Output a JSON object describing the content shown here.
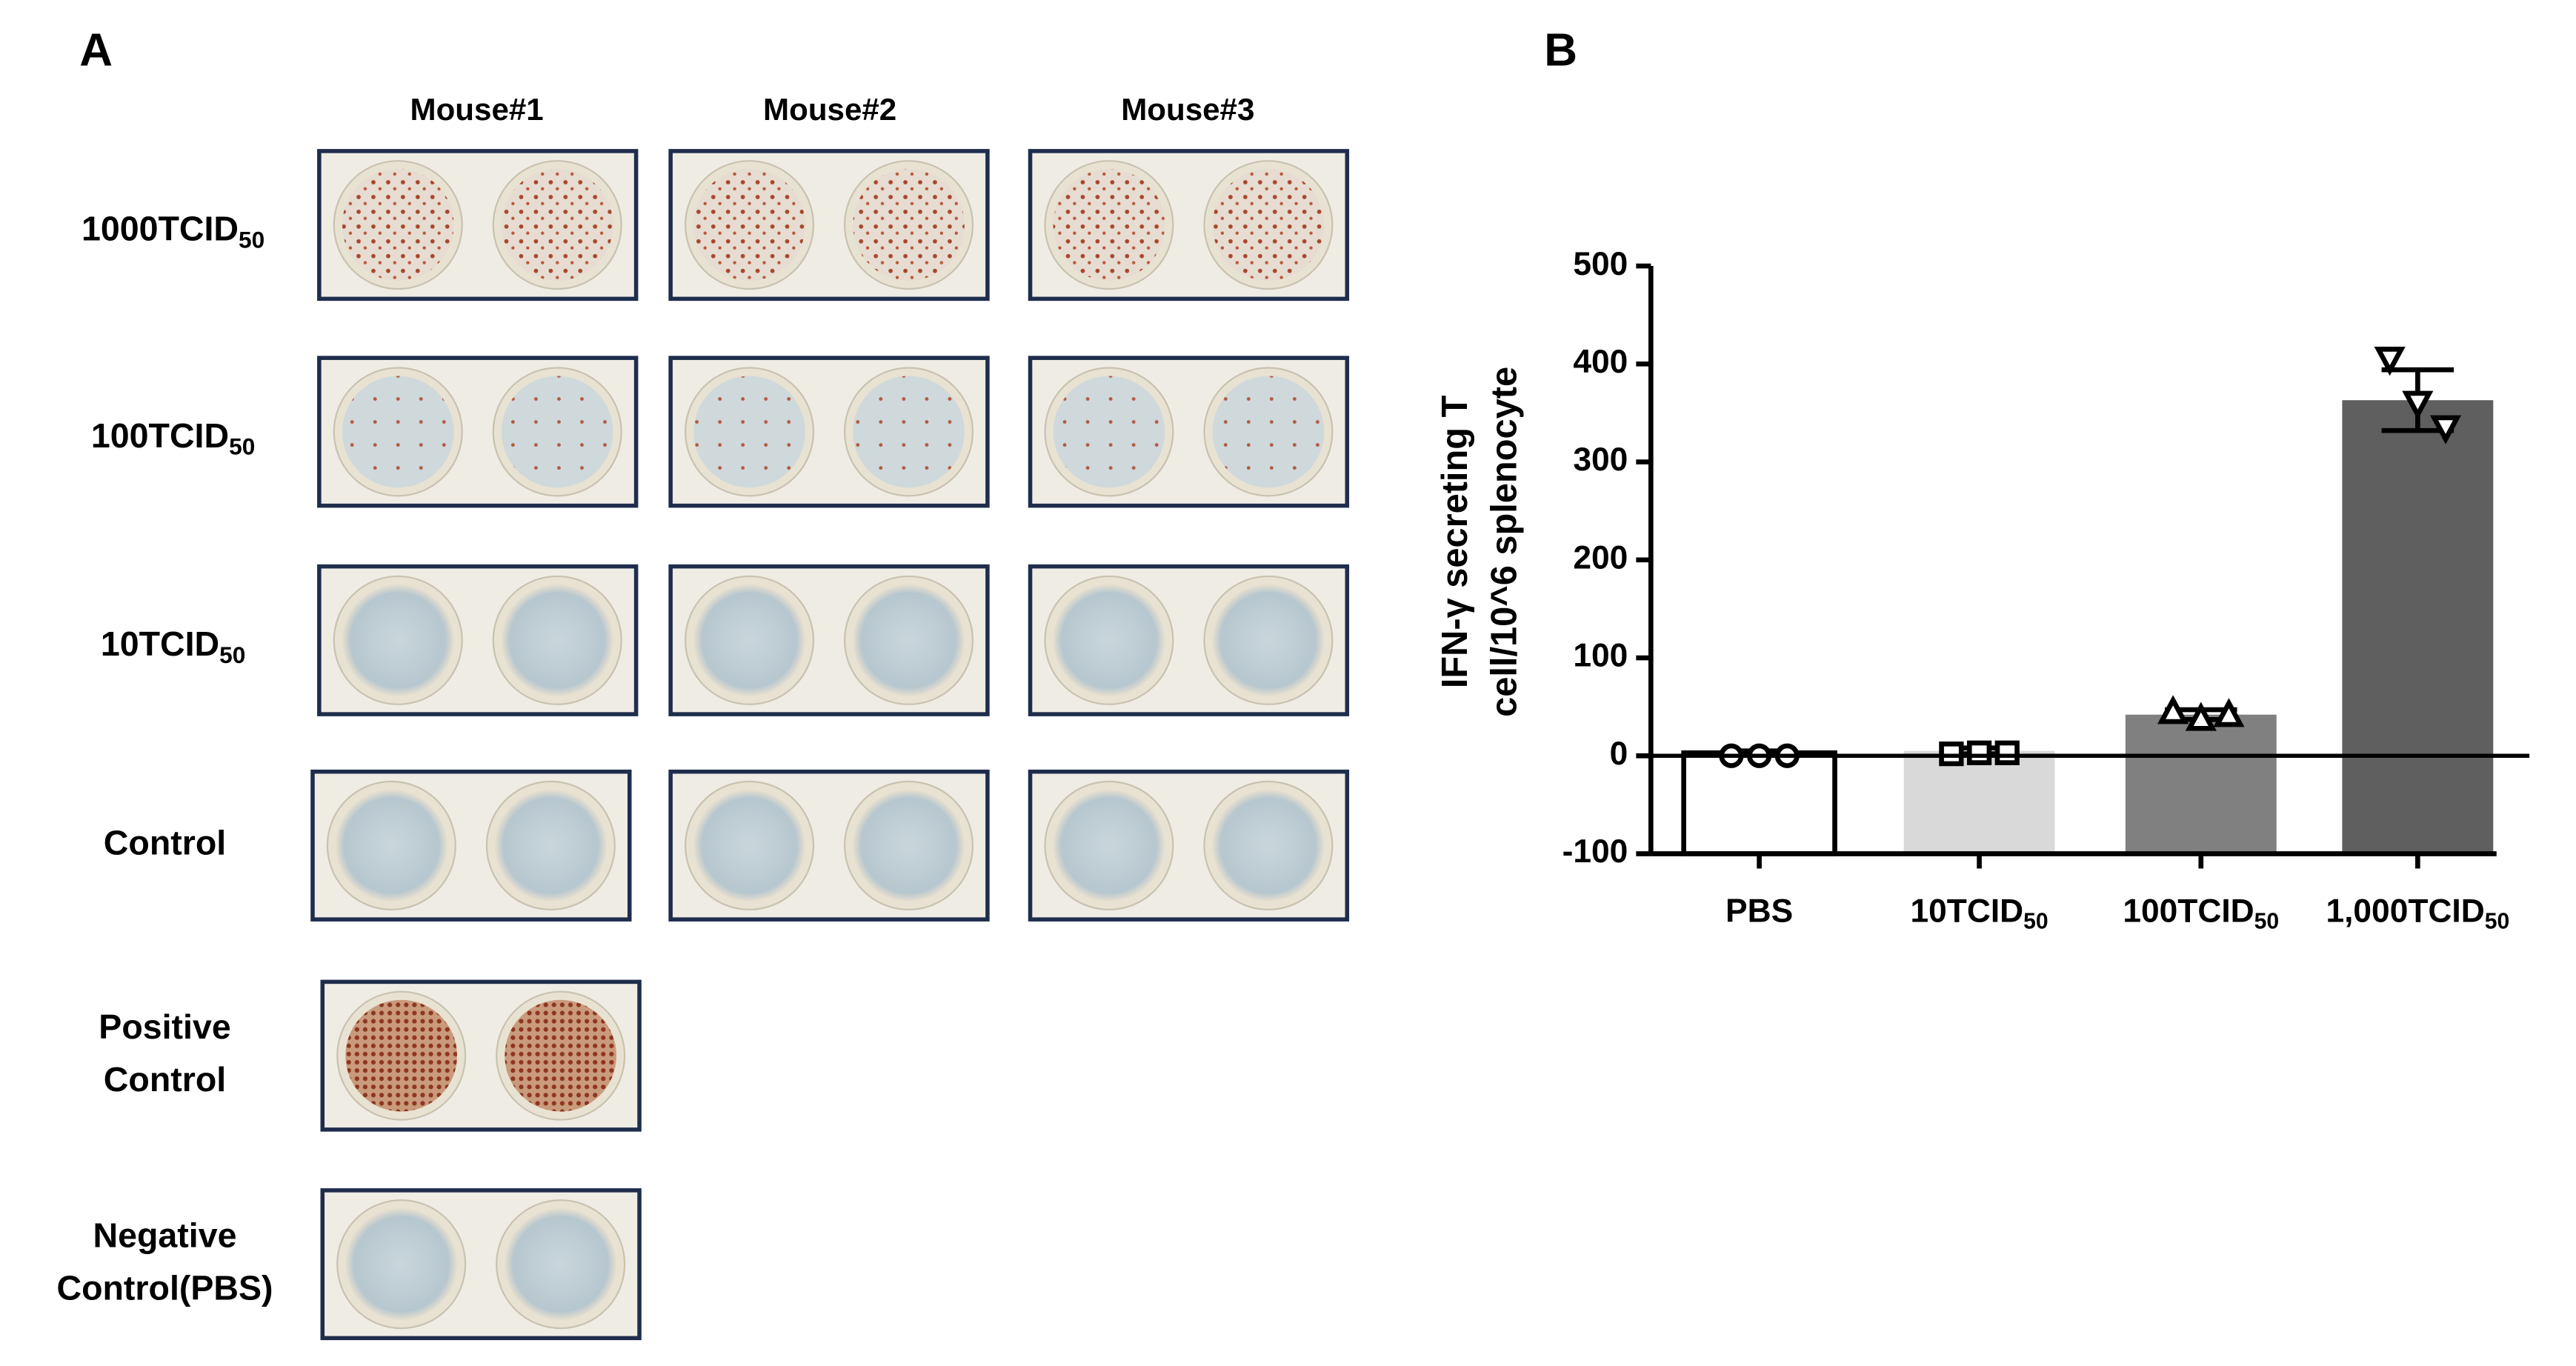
{
  "panel_a": {
    "label": "A",
    "columns": [
      "Mouse#1",
      "Mouse#2",
      "Mouse#3"
    ],
    "rows": [
      {
        "text": "1000TCID",
        "sub": "50",
        "wells": 3,
        "stain": "heavy"
      },
      {
        "text": "100TCID",
        "sub": "50",
        "wells": 3,
        "stain": "light"
      },
      {
        "text": "10TCID",
        "sub": "50",
        "wells": 3,
        "stain": "none"
      },
      {
        "lines": [
          "Control"
        ],
        "wells": 3,
        "stain": "none"
      },
      {
        "lines": [
          "Positive",
          "Control"
        ],
        "wells": 1,
        "stain": "full"
      },
      {
        "lines": [
          "Negative",
          "Control(PBS)"
        ],
        "wells": 1,
        "stain": "none"
      }
    ]
  },
  "panel_b": {
    "label": "B"
  },
  "chart_data": {
    "type": "bar",
    "y_label": [
      "IFN-γ secreting T",
      "cell/10^6 splenocyte"
    ],
    "categories": [
      "PBS",
      "10TCID",
      "100TCID",
      "1,000TCID"
    ],
    "category_subscripts": [
      null,
      "50",
      "50",
      "50"
    ],
    "values": [
      3,
      5,
      42,
      363
    ],
    "errors": [
      2,
      3,
      5,
      31
    ],
    "points": [
      [
        0,
        0,
        0
      ],
      [
        2,
        3,
        3
      ],
      [
        45,
        38,
        42
      ],
      [
        405,
        360,
        335
      ]
    ],
    "markers": [
      "circle",
      "square",
      "triangle",
      "triangle-down"
    ],
    "colors": [
      "#ffffff",
      "#d9d9d9",
      "#808080",
      "#5f5f5f"
    ],
    "ylim": [
      -100,
      500
    ],
    "yticks": [
      -100,
      0,
      100,
      200,
      300,
      400,
      500
    ]
  }
}
